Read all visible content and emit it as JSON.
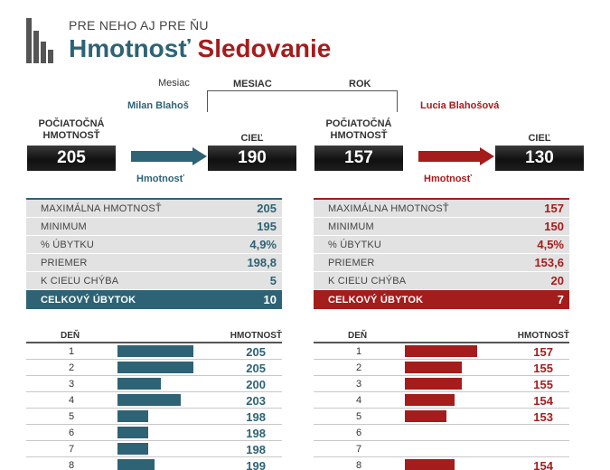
{
  "header": {
    "subtitle": "PRE NEHO AJ PRE ŇU",
    "title_part1": "Hmotnosť",
    "title_part2": "Sledovanie",
    "logo_icon": "bar-chart-logo-icon"
  },
  "period": {
    "label": "Mesiac",
    "options": [
      "MESIAC",
      "ROK"
    ]
  },
  "colors": {
    "left_accent": "#2e6375",
    "right_accent": "#a51c1c"
  },
  "left": {
    "name": "Milan Blahoš",
    "start_label_line1": "POČIATOČNÁ",
    "start_label_line2": "HMOTNOSŤ",
    "start_weight": "205",
    "arrow_label": "Hmotnosť",
    "goal_label": "CIEĽ",
    "goal_weight": "190",
    "stats": [
      {
        "label": "MAXIMÁLNA HMOTNOSŤ",
        "value": "205"
      },
      {
        "label": "MINIMUM",
        "value": "195"
      },
      {
        "label": "% ÚBYTKU",
        "value": "4,9%"
      },
      {
        "label": "PRIEMER",
        "value": "198,8"
      },
      {
        "label": "K CIEĽU CHÝBA",
        "value": "5"
      }
    ],
    "total_label": "CELKOVÝ ÚBYTOK",
    "total_value": "10",
    "table_headers": {
      "day": "DEŇ",
      "weight": "HMOTNOSŤ"
    },
    "days": [
      {
        "day": "1",
        "weight": "205",
        "level": 205
      },
      {
        "day": "2",
        "weight": "205",
        "level": 205
      },
      {
        "day": "3",
        "weight": "200",
        "level": 200
      },
      {
        "day": "4",
        "weight": "203",
        "level": 203
      },
      {
        "day": "5",
        "weight": "198",
        "level": 198
      },
      {
        "day": "6",
        "weight": "198",
        "level": 198
      },
      {
        "day": "7",
        "weight": "198",
        "level": 198
      },
      {
        "day": "8",
        "weight": "199",
        "level": 199
      }
    ]
  },
  "right": {
    "name": "Lucia Blahošová",
    "start_label_line1": "POČIATOČNÁ",
    "start_label_line2": "HMOTNOSŤ",
    "start_weight": "157",
    "arrow_label": "Hmotnosť",
    "goal_label": "CIEĽ",
    "goal_weight": "130",
    "stats": [
      {
        "label": "MAXIMÁLNA HMOTNOSŤ",
        "value": "157"
      },
      {
        "label": "MINIMUM",
        "value": "150"
      },
      {
        "label": "% ÚBYTKU",
        "value": "4,5%"
      },
      {
        "label": "PRIEMER",
        "value": "153,6"
      },
      {
        "label": "K CIEĽU CHÝBA",
        "value": "20"
      }
    ],
    "total_label": "CELKOVÝ ÚBYTOK",
    "total_value": "7",
    "table_headers": {
      "day": "DEŇ",
      "weight": "HMOTNOSŤ"
    },
    "days": [
      {
        "day": "1",
        "weight": "157",
        "level": 157
      },
      {
        "day": "2",
        "weight": "155",
        "level": 155
      },
      {
        "day": "3",
        "weight": "155",
        "level": 155
      },
      {
        "day": "4",
        "weight": "154",
        "level": 154
      },
      {
        "day": "5",
        "weight": "153",
        "level": 153
      },
      {
        "day": "6",
        "weight": "",
        "level": 0
      },
      {
        "day": "7",
        "weight": "",
        "level": 0
      },
      {
        "day": "8",
        "weight": "154",
        "level": 154
      }
    ]
  }
}
